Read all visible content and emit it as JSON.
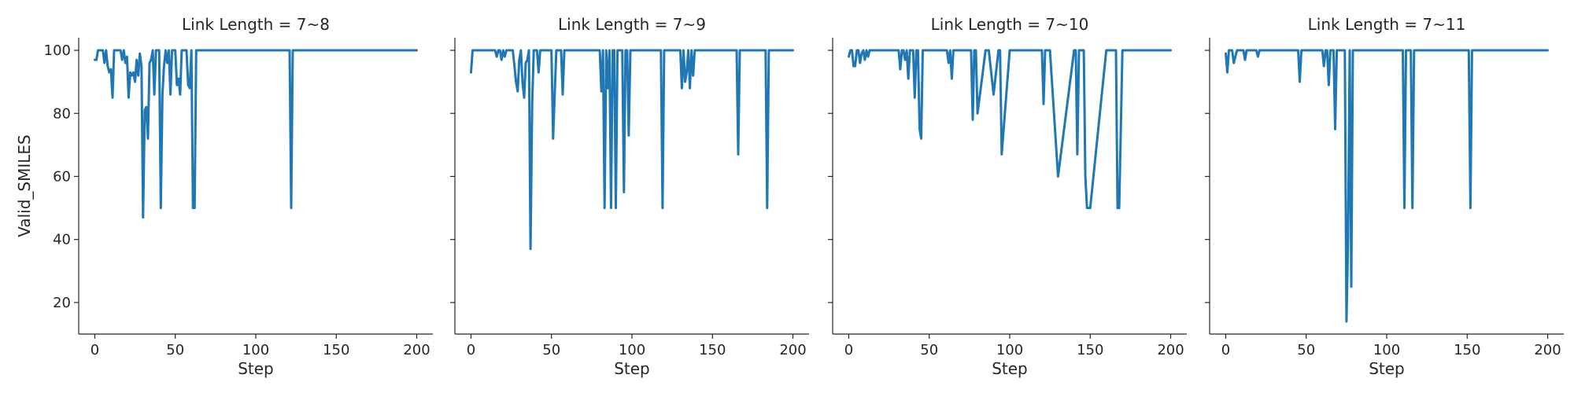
{
  "chart_data": [
    {
      "type": "line",
      "title": "Link Length = 7~8",
      "xlabel": "Step",
      "ylabel": "Valid_SMILES",
      "xlim": [
        -10,
        210
      ],
      "ylim": [
        10,
        104
      ],
      "xticks": [
        0,
        50,
        100,
        150,
        200
      ],
      "yticks": [
        20,
        40,
        60,
        80,
        100
      ],
      "grid": false,
      "color": "#1f77b4",
      "series": [
        {
          "x": [
            0,
            1,
            2,
            3,
            4,
            5,
            6,
            7,
            8,
            9,
            10,
            11,
            12,
            13,
            14,
            15,
            16,
            17,
            18,
            19,
            20,
            21,
            22,
            23,
            24,
            25,
            26,
            27,
            28,
            29,
            30,
            31,
            32,
            33,
            34,
            35,
            36,
            37,
            38,
            39,
            40,
            41,
            42,
            43,
            44,
            45,
            46,
            47,
            48,
            49,
            50,
            51,
            52,
            53,
            54,
            55,
            56,
            57,
            58,
            59,
            60,
            61,
            62,
            63,
            64,
            65,
            66,
            67,
            68,
            69,
            70,
            71,
            72,
            80,
            100,
            120,
            121,
            122,
            123,
            124,
            130,
            160,
            200
          ],
          "y": [
            97,
            97,
            100,
            100,
            100,
            100,
            96,
            100,
            95,
            93,
            94,
            85,
            100,
            100,
            100,
            100,
            100,
            97,
            100,
            96,
            98,
            85,
            93,
            92,
            93,
            90,
            97,
            92,
            99,
            95,
            47,
            81,
            82,
            72,
            96,
            97,
            100,
            86,
            100,
            100,
            100,
            50,
            86,
            95,
            100,
            96,
            100,
            86,
            100,
            100,
            100,
            89,
            91,
            86,
            100,
            100,
            100,
            100,
            89,
            88,
            100,
            50,
            50,
            100,
            100,
            100,
            100,
            100,
            100,
            100,
            100,
            100,
            100,
            100,
            100,
            100,
            100,
            50,
            100,
            100,
            100,
            100,
            100
          ]
        }
      ]
    },
    {
      "type": "line",
      "title": "Link Length = 7~9",
      "xlabel": "Step",
      "xlim": [
        -10,
        210
      ],
      "ylim": [
        10,
        104
      ],
      "xticks": [
        0,
        50,
        100,
        150,
        200
      ],
      "yticks": [
        20,
        40,
        60,
        80,
        100
      ],
      "grid": false,
      "color": "#1f77b4",
      "series": [
        {
          "x": [
            0,
            1,
            2,
            5,
            10,
            15,
            16,
            17,
            18,
            19,
            20,
            21,
            22,
            23,
            24,
            25,
            26,
            27,
            28,
            29,
            30,
            31,
            32,
            33,
            34,
            35,
            36,
            37,
            38,
            39,
            40,
            41,
            42,
            43,
            44,
            45,
            46,
            47,
            48,
            49,
            50,
            51,
            52,
            53,
            54,
            55,
            56,
            57,
            58,
            59,
            60,
            61,
            62,
            63,
            64,
            65,
            66,
            67,
            68,
            69,
            70,
            75,
            80,
            81,
            82,
            83,
            84,
            85,
            86,
            87,
            88,
            89,
            90,
            91,
            92,
            93,
            94,
            95,
            96,
            97,
            98,
            99,
            100,
            110,
            118,
            119,
            120,
            121,
            125,
            130,
            131,
            132,
            133,
            134,
            135,
            136,
            137,
            138,
            139,
            140,
            145,
            150,
            160,
            165,
            166,
            167,
            170,
            180,
            183,
            184,
            185,
            190,
            200
          ],
          "y": [
            93,
            100,
            100,
            100,
            100,
            100,
            98,
            100,
            100,
            97,
            100,
            98,
            100,
            100,
            100,
            100,
            100,
            95,
            90,
            87,
            97,
            100,
            90,
            85,
            96,
            97,
            100,
            37,
            83,
            100,
            100,
            100,
            93,
            100,
            100,
            100,
            100,
            100,
            100,
            100,
            100,
            72,
            86,
            100,
            100,
            100,
            100,
            86,
            100,
            100,
            100,
            100,
            100,
            100,
            100,
            100,
            100,
            100,
            100,
            100,
            100,
            100,
            100,
            87,
            100,
            50,
            100,
            88,
            100,
            50,
            100,
            100,
            50,
            100,
            100,
            100,
            100,
            55,
            100,
            100,
            73,
            100,
            100,
            100,
            100,
            50,
            100,
            100,
            100,
            100,
            88,
            100,
            90,
            93,
            100,
            88,
            100,
            92,
            100,
            100,
            100,
            100,
            100,
            100,
            67,
            100,
            100,
            100,
            100,
            50,
            100,
            100,
            100
          ]
        }
      ]
    },
    {
      "type": "line",
      "title": "Link Length = 7~10",
      "xlabel": "Step",
      "xlim": [
        -10,
        210
      ],
      "ylim": [
        10,
        104
      ],
      "xticks": [
        0,
        50,
        100,
        150,
        200
      ],
      "yticks": [
        20,
        40,
        60,
        80,
        100
      ],
      "grid": false,
      "color": "#1f77b4",
      "series": [
        {
          "x": [
            0,
            1,
            2,
            3,
            4,
            5,
            6,
            7,
            8,
            9,
            10,
            11,
            12,
            13,
            14,
            15,
            20,
            30,
            31,
            32,
            33,
            34,
            35,
            36,
            37,
            38,
            39,
            40,
            41,
            42,
            43,
            44,
            45,
            46,
            47,
            48,
            50,
            55,
            60,
            61,
            62,
            63,
            64,
            65,
            66,
            67,
            68,
            69,
            70,
            75,
            76,
            77,
            78,
            79,
            80,
            85,
            86,
            87,
            90,
            93,
            94,
            95,
            100,
            110,
            111,
            112,
            115,
            120,
            121,
            122,
            125,
            130,
            140,
            141,
            142,
            143,
            144,
            145,
            146,
            147,
            148,
            150,
            160,
            165,
            166,
            167,
            168,
            170,
            180,
            200
          ],
          "y": [
            98,
            100,
            100,
            95,
            95,
            100,
            100,
            96,
            99,
            100,
            97,
            100,
            98,
            100,
            100,
            100,
            100,
            100,
            100,
            94,
            100,
            100,
            97,
            100,
            91,
            100,
            100,
            100,
            85,
            100,
            100,
            75,
            72,
            100,
            100,
            100,
            100,
            100,
            100,
            100,
            96,
            100,
            91,
            100,
            100,
            100,
            100,
            100,
            100,
            100,
            100,
            78,
            100,
            100,
            80,
            100,
            100,
            100,
            86,
            100,
            100,
            67,
            100,
            100,
            100,
            100,
            100,
            100,
            83,
            100,
            100,
            60,
            100,
            100,
            67,
            100,
            100,
            100,
            100,
            60,
            50,
            50,
            100,
            100,
            100,
            50,
            50,
            100,
            100,
            100
          ]
        }
      ]
    },
    {
      "type": "line",
      "title": "Link Length = 7~11",
      "xlabel": "Step",
      "xlim": [
        -10,
        210
      ],
      "ylim": [
        10,
        104
      ],
      "xticks": [
        0,
        50,
        100,
        150,
        200
      ],
      "yticks": [
        20,
        40,
        60,
        80,
        100
      ],
      "grid": false,
      "color": "#1f77b4",
      "series": [
        {
          "x": [
            0,
            1,
            2,
            3,
            4,
            5,
            6,
            7,
            8,
            9,
            10,
            11,
            12,
            13,
            14,
            15,
            16,
            17,
            18,
            19,
            20,
            21,
            22,
            23,
            24,
            25,
            30,
            40,
            45,
            46,
            47,
            48,
            50,
            55,
            60,
            61,
            62,
            63,
            64,
            65,
            66,
            67,
            68,
            69,
            70,
            71,
            72,
            73,
            74,
            75,
            76,
            77,
            78,
            79,
            80,
            81,
            82,
            83,
            84,
            85,
            90,
            100,
            110,
            111,
            112,
            115,
            116,
            117,
            120,
            150,
            151,
            152,
            153,
            160,
            200
          ],
          "y": [
            99,
            93,
            100,
            100,
            100,
            96,
            98,
            100,
            100,
            100,
            100,
            100,
            97,
            100,
            100,
            100,
            100,
            100,
            100,
            100,
            98,
            100,
            100,
            100,
            100,
            100,
            100,
            100,
            100,
            90,
            100,
            100,
            100,
            100,
            100,
            95,
            100,
            100,
            89,
            100,
            100,
            100,
            75,
            100,
            100,
            100,
            100,
            100,
            100,
            14,
            40,
            100,
            25,
            100,
            100,
            100,
            100,
            100,
            100,
            100,
            100,
            100,
            100,
            50,
            100,
            100,
            50,
            100,
            100,
            100,
            100,
            50,
            100,
            100,
            100
          ]
        }
      ]
    }
  ]
}
